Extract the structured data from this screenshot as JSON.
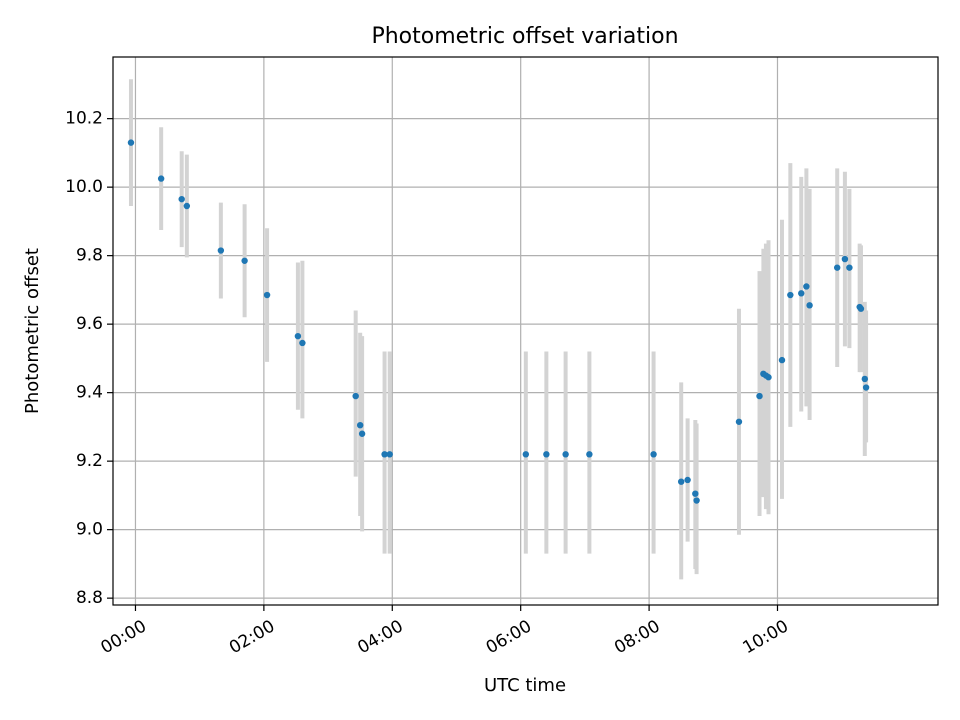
{
  "chart_data": {
    "type": "scatter",
    "title": "Photometric offset variation",
    "xlabel": "UTC time",
    "ylabel": "Photometric offset",
    "grid": true,
    "xlim": [
      -0.35,
      12.5
    ],
    "ylim": [
      8.78,
      10.38
    ],
    "x_ticks": [
      {
        "value": 0,
        "label": "00:00"
      },
      {
        "value": 2,
        "label": "02:00"
      },
      {
        "value": 4,
        "label": "04:00"
      },
      {
        "value": 6,
        "label": "06:00"
      },
      {
        "value": 8,
        "label": "08:00"
      },
      {
        "value": 10,
        "label": "10:00"
      }
    ],
    "y_ticks": [
      {
        "value": 8.8,
        "label": "8.8"
      },
      {
        "value": 9.0,
        "label": "9.0"
      },
      {
        "value": 9.2,
        "label": "9.2"
      },
      {
        "value": 9.4,
        "label": "9.4"
      },
      {
        "value": 9.6,
        "label": "9.6"
      },
      {
        "value": 9.8,
        "label": "9.8"
      },
      {
        "value": 10.0,
        "label": "10.0"
      },
      {
        "value": 10.2,
        "label": "10.2"
      }
    ],
    "colors": {
      "point": "#1f77b4",
      "errorbar": "#d3d3d3",
      "grid": "#b0b0b0"
    },
    "points": [
      {
        "x": -0.07,
        "y": 10.13,
        "lo": 9.945,
        "hi": 10.315
      },
      {
        "x": 0.4,
        "y": 10.025,
        "lo": 9.875,
        "hi": 10.175
      },
      {
        "x": 0.72,
        "y": 9.965,
        "lo": 9.825,
        "hi": 10.105
      },
      {
        "x": 0.8,
        "y": 9.945,
        "lo": 9.795,
        "hi": 10.095
      },
      {
        "x": 1.33,
        "y": 9.815,
        "lo": 9.675,
        "hi": 9.955
      },
      {
        "x": 1.7,
        "y": 9.785,
        "lo": 9.62,
        "hi": 9.95
      },
      {
        "x": 2.05,
        "y": 9.685,
        "lo": 9.49,
        "hi": 9.88
      },
      {
        "x": 2.53,
        "y": 9.565,
        "lo": 9.35,
        "hi": 9.78
      },
      {
        "x": 2.6,
        "y": 9.545,
        "lo": 9.325,
        "hi": 9.785
      },
      {
        "x": 3.43,
        "y": 9.39,
        "lo": 9.155,
        "hi": 9.64
      },
      {
        "x": 3.5,
        "y": 9.305,
        "lo": 9.04,
        "hi": 9.575
      },
      {
        "x": 3.53,
        "y": 9.28,
        "lo": 8.995,
        "hi": 9.565
      },
      {
        "x": 3.88,
        "y": 9.22,
        "lo": 8.93,
        "hi": 9.52
      },
      {
        "x": 3.96,
        "y": 9.22,
        "lo": 8.93,
        "hi": 9.52
      },
      {
        "x": 6.08,
        "y": 9.22,
        "lo": 8.93,
        "hi": 9.52
      },
      {
        "x": 6.4,
        "y": 9.22,
        "lo": 8.93,
        "hi": 9.52
      },
      {
        "x": 6.7,
        "y": 9.22,
        "lo": 8.93,
        "hi": 9.52
      },
      {
        "x": 7.07,
        "y": 9.22,
        "lo": 8.93,
        "hi": 9.52
      },
      {
        "x": 8.07,
        "y": 9.22,
        "lo": 8.93,
        "hi": 9.52
      },
      {
        "x": 8.5,
        "y": 9.14,
        "lo": 8.855,
        "hi": 9.43
      },
      {
        "x": 8.6,
        "y": 9.145,
        "lo": 8.965,
        "hi": 9.325
      },
      {
        "x": 8.72,
        "y": 9.105,
        "lo": 8.885,
        "hi": 9.32
      },
      {
        "x": 8.74,
        "y": 9.085,
        "lo": 8.87,
        "hi": 9.31
      },
      {
        "x": 9.4,
        "y": 9.315,
        "lo": 8.985,
        "hi": 9.645
      },
      {
        "x": 9.72,
        "y": 9.39,
        "lo": 9.04,
        "hi": 9.755
      },
      {
        "x": 9.78,
        "y": 9.455,
        "lo": 9.095,
        "hi": 9.82
      },
      {
        "x": 9.82,
        "y": 9.45,
        "lo": 9.06,
        "hi": 9.835
      },
      {
        "x": 9.86,
        "y": 9.445,
        "lo": 9.045,
        "hi": 9.845
      },
      {
        "x": 10.07,
        "y": 9.495,
        "lo": 9.09,
        "hi": 9.905
      },
      {
        "x": 10.2,
        "y": 9.685,
        "lo": 9.3,
        "hi": 10.07
      },
      {
        "x": 10.37,
        "y": 9.69,
        "lo": 9.345,
        "hi": 10.03
      },
      {
        "x": 10.45,
        "y": 9.71,
        "lo": 9.36,
        "hi": 10.055
      },
      {
        "x": 10.5,
        "y": 9.655,
        "lo": 9.32,
        "hi": 9.995
      },
      {
        "x": 10.93,
        "y": 9.765,
        "lo": 9.475,
        "hi": 10.055
      },
      {
        "x": 11.05,
        "y": 9.79,
        "lo": 9.535,
        "hi": 10.045
      },
      {
        "x": 11.12,
        "y": 9.765,
        "lo": 9.53,
        "hi": 9.995
      },
      {
        "x": 11.28,
        "y": 9.65,
        "lo": 9.46,
        "hi": 9.835
      },
      {
        "x": 11.3,
        "y": 9.645,
        "lo": 9.46,
        "hi": 9.83
      },
      {
        "x": 11.36,
        "y": 9.44,
        "lo": 9.215,
        "hi": 9.665
      },
      {
        "x": 11.38,
        "y": 9.415,
        "lo": 9.255,
        "hi": 9.64
      }
    ]
  }
}
